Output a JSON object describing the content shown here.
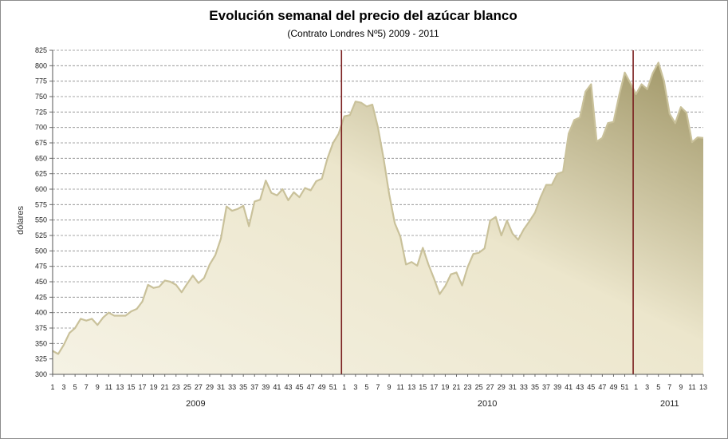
{
  "chart_data": {
    "type": "area",
    "title": "Evolución semanal del precio del azúcar blanco",
    "subtitle": "(Contrato Londres Nº5)  2009 - 2011",
    "ylabel": "dólares",
    "xlabel": "",
    "ylim": [
      300,
      825
    ],
    "ytick_step": 25,
    "grid": true,
    "legend": "none",
    "colors": {
      "fill_light": "#f2eedd",
      "fill_dark": "#a59b6c",
      "line": "#c9c19a",
      "divider": "#7a1f1f",
      "grid": "#8a8a8a"
    },
    "years": [
      {
        "label": "2009",
        "weeks": 52
      },
      {
        "label": "2010",
        "weeks": 52
      },
      {
        "label": "2011",
        "weeks": 13
      }
    ],
    "week_tick_labels": [
      "1",
      "3",
      "5",
      "7",
      "9",
      "11",
      "13",
      "15",
      "17",
      "19",
      "21",
      "23",
      "25",
      "27",
      "29",
      "31",
      "33",
      "35",
      "37",
      "39",
      "41",
      "43",
      "45",
      "47",
      "49",
      "51",
      "1",
      "3",
      "5",
      "7",
      "9",
      "11",
      "13",
      "15",
      "17",
      "19",
      "21",
      "23",
      "25",
      "27",
      "29",
      "31",
      "33",
      "35",
      "37",
      "39",
      "41",
      "43",
      "45",
      "47",
      "49",
      "51",
      "1",
      "3",
      "5",
      "7",
      "9",
      "11",
      "13"
    ],
    "dividers_after_week_index": [
      52,
      104
    ],
    "values": [
      338,
      333,
      348,
      367,
      375,
      390,
      387,
      390,
      380,
      392,
      400,
      395,
      395,
      395,
      402,
      406,
      418,
      445,
      440,
      442,
      452,
      450,
      445,
      433,
      447,
      460,
      448,
      456,
      478,
      493,
      520,
      572,
      565,
      568,
      573,
      540,
      580,
      583,
      614,
      594,
      590,
      600,
      582,
      595,
      587,
      602,
      598,
      613,
      617,
      650,
      675,
      690,
      718,
      720,
      742,
      740,
      734,
      737,
      700,
      650,
      592,
      545,
      523,
      478,
      482,
      476,
      505,
      478,
      455,
      430,
      443,
      462,
      465,
      444,
      474,
      495,
      497,
      504,
      549,
      555,
      525,
      549,
      528,
      518,
      535,
      548,
      562,
      587,
      607,
      607,
      625,
      628,
      690,
      712,
      716,
      758,
      770,
      677,
      683,
      707,
      709,
      752,
      789,
      772,
      754,
      770,
      762,
      788,
      805,
      775,
      722,
      707,
      733,
      724,
      676,
      684,
      683
    ]
  }
}
